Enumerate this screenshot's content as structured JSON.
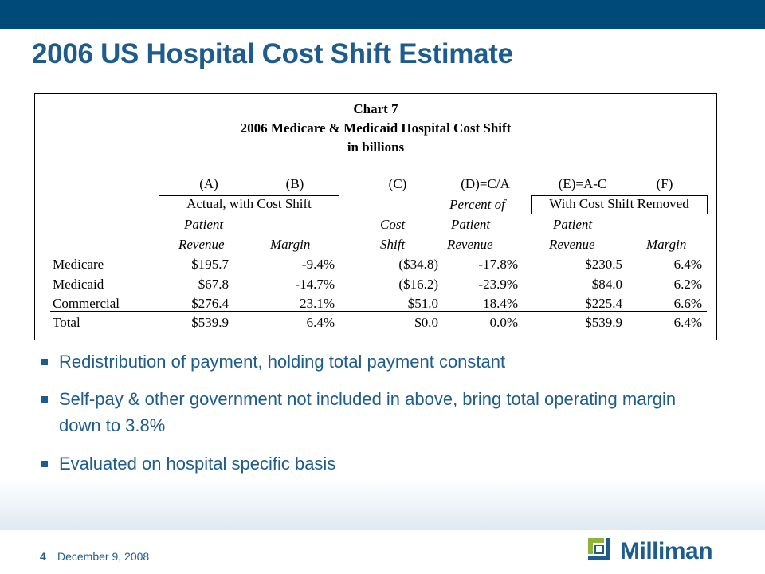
{
  "slide": {
    "title": "2006 US Hospital Cost Shift Estimate",
    "page_number": "4",
    "date": "December 9, 2008",
    "logo_text": "Milliman"
  },
  "chart": {
    "title_line1": "Chart 7",
    "title_line2": "2006 Medicare & Medicaid Hospital Cost Shift",
    "title_line3": "in billions",
    "col_letters": [
      "(A)",
      "(B)",
      "(C)",
      "(D)=C/A",
      "(E)=A-C",
      "(F)"
    ],
    "group_actual": "Actual, with Cost Shift",
    "group_removed": "With Cost Shift Removed",
    "header_row1": [
      "Patient",
      "Cost",
      "Percent of",
      "Patient"
    ],
    "header_row1_extra": "Patient",
    "header_row2": [
      "Revenue",
      "Margin",
      "Shift",
      "Revenue",
      "Revenue",
      "Margin"
    ],
    "rows": [
      {
        "label": "Medicare",
        "a": "$195.7",
        "b": "-9.4%",
        "c": "($34.8)",
        "d": "-17.8%",
        "e": "$230.5",
        "f": "6.4%"
      },
      {
        "label": "Medicaid",
        "a": "$67.8",
        "b": "-14.7%",
        "c": "($16.2)",
        "d": "-23.9%",
        "e": "$84.0",
        "f": "6.2%"
      },
      {
        "label": "Commercial",
        "a": "$276.4",
        "b": "23.1%",
        "c": "$51.0",
        "d": "18.4%",
        "e": "$225.4",
        "f": "6.6%"
      },
      {
        "label": "Total",
        "a": "$539.9",
        "b": "6.4%",
        "c": "$0.0",
        "d": "0.0%",
        "e": "$539.9",
        "f": "6.4%"
      }
    ]
  },
  "bullets": [
    "Redistribution of payment, holding total payment constant",
    "Self-pay & other government not included in above, bring total operating margin down to 3.8%",
    "Evaluated on hospital specific basis"
  ],
  "colors": {
    "accent": "#1d5c8c",
    "topbar": "#004a7a"
  }
}
